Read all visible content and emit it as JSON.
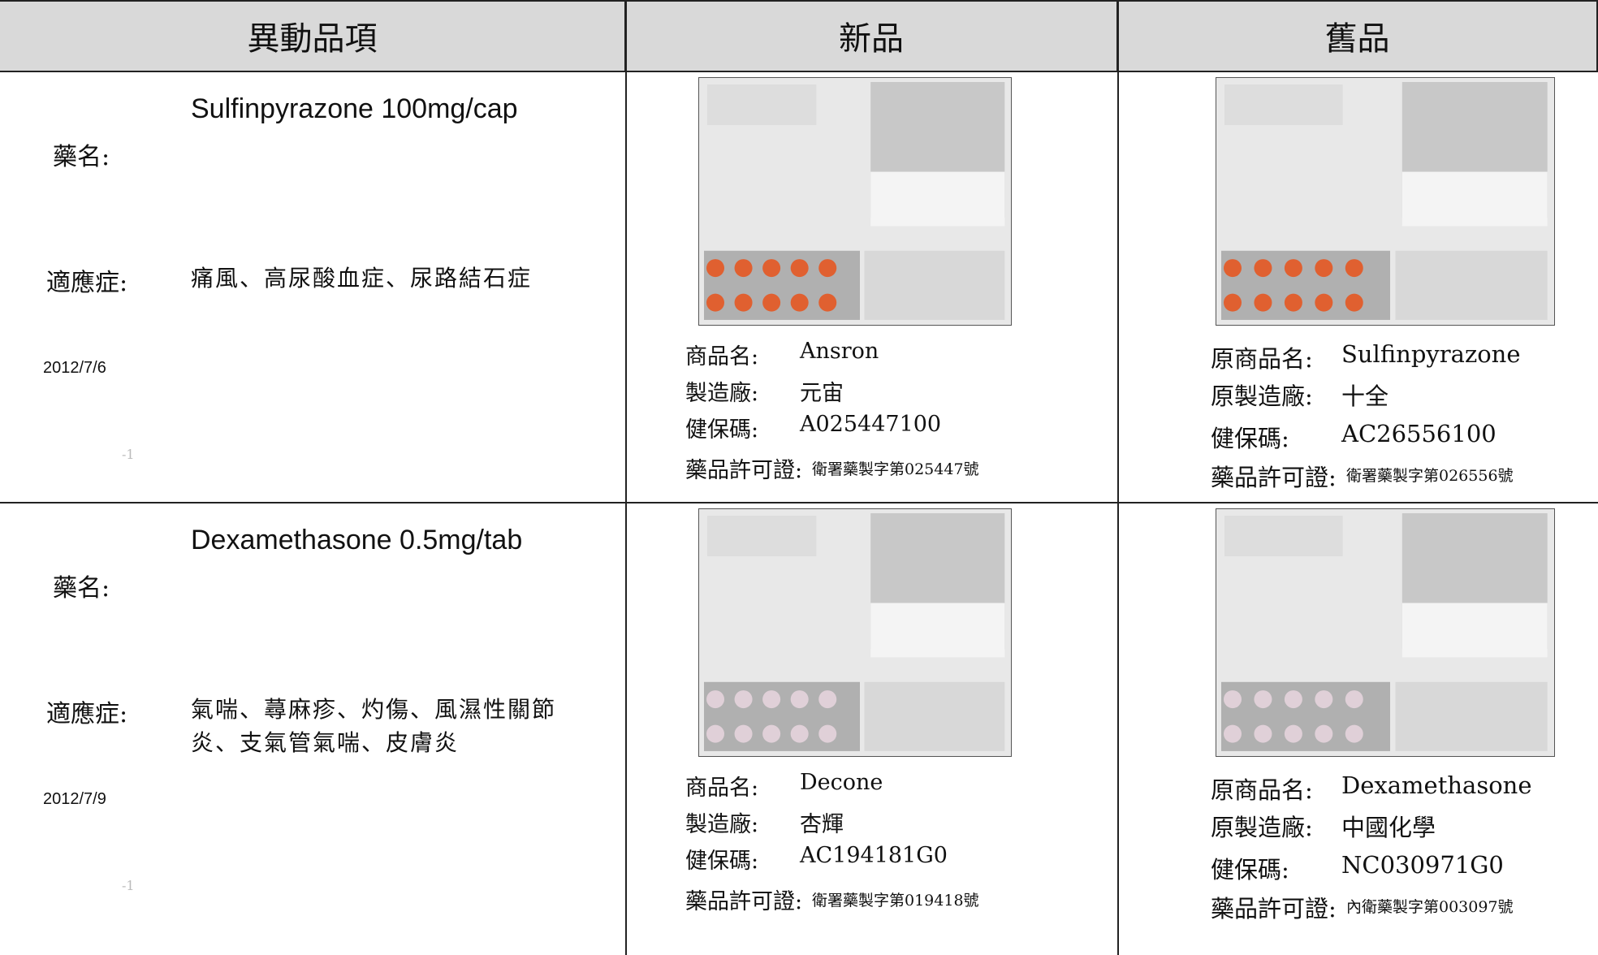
{
  "header": [
    "異動品項",
    "新品",
    "舊品"
  ],
  "rows": [
    {
      "drug_label": "藥名:",
      "drug_name": "Sulfinpyrazone 100mg/cap",
      "indication_label": "適應症:",
      "indication": "痛風、高尿酸血症、尿路結石症",
      "date": "2012/7/6",
      "note": "-1",
      "new": [
        {
          "label": "商品名:",
          "value": "Ansron"
        },
        {
          "label": "製造廠:",
          "value": "元宙"
        },
        {
          "label": "健保碼:",
          "value": "A025447100"
        },
        {
          "label": "藥品許可證:",
          "value": "衛署藥製字第025447號"
        }
      ],
      "old": [
        {
          "label": "原商品名:",
          "value": "Sulfinpyrazone"
        },
        {
          "label": "原製造廠:",
          "value": "十全"
        },
        {
          "label": "健保碼:",
          "value": "AC26556100"
        },
        {
          "label": "藥品許可證:",
          "value": "衛署藥製字第026556號"
        }
      ]
    },
    {
      "drug_label": "藥名:",
      "drug_name": "Dexamethasone 0.5mg/tab",
      "indication_label": "適應症:",
      "indication": "氣喘、蕁麻疹、灼傷、風濕性關節炎、支氣管氣喘、皮膚炎",
      "date": "2012/7/9",
      "note": "-1",
      "new": [
        {
          "label": "商品名:",
          "value": "Decone"
        },
        {
          "label": "製造廠:",
          "value": "杏輝"
        },
        {
          "label": "健保碼:",
          "value": "AC194181G0"
        },
        {
          "label": "藥品許可證:",
          "value": "衛署藥製字第019418號"
        }
      ],
      "old": [
        {
          "label": "原商品名:",
          "value": "Dexamethasone"
        },
        {
          "label": "原製造廠:",
          "value": "中國化學"
        },
        {
          "label": "健保碼:",
          "value": "NC030971G0"
        },
        {
          "label": "藥品許可證:",
          "value": "內衛藥製字第003097號"
        }
      ]
    }
  ]
}
